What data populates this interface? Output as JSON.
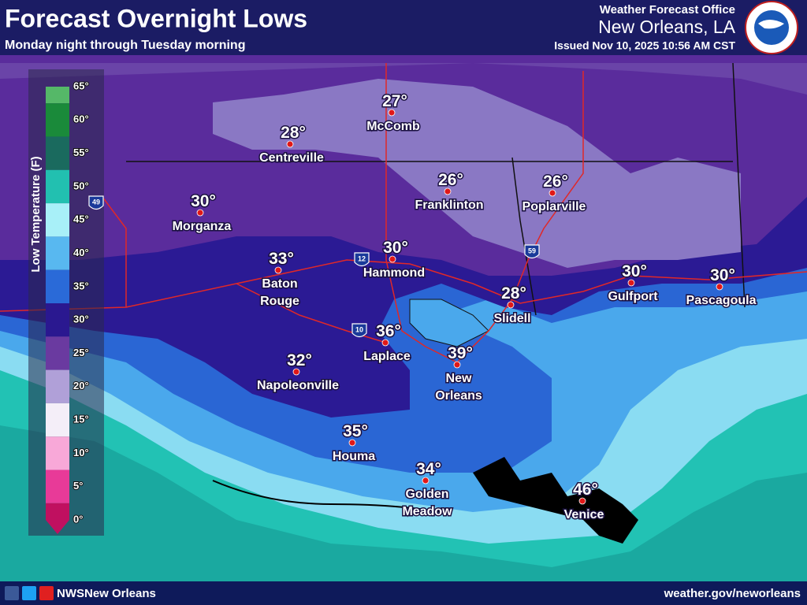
{
  "header": {
    "title": "Forecast Overnight Lows",
    "subtitle": "Monday night through Tuesday morning",
    "office": "Weather Forecast Office",
    "location": "New Orleans, LA",
    "issued": "Issued Nov 10, 2025 10:56 AM CST"
  },
  "legend": {
    "title": "Low Temperature (F)",
    "stops": [
      {
        "label": "65°",
        "color": "#55b868"
      },
      {
        "label": "60°",
        "color": "#1a8a3a"
      },
      {
        "label": "55°",
        "color": "#1a6a5e"
      },
      {
        "label": "50°",
        "color": "#22c0b0"
      },
      {
        "label": "45°",
        "color": "#a8f0f8"
      },
      {
        "label": "40°",
        "color": "#58b8f0"
      },
      {
        "label": "35°",
        "color": "#2a6ad8"
      },
      {
        "label": "30°",
        "color": "#2a1890"
      },
      {
        "label": "25°",
        "color": "#6a3aa0"
      },
      {
        "label": "20°",
        "color": "#b0a0d8"
      },
      {
        "label": "15°",
        "color": "#f4eef8"
      },
      {
        "label": "10°",
        "color": "#f8a8d8"
      },
      {
        "label": "5°",
        "color": "#e83a98"
      },
      {
        "label": "0°",
        "color": "#c01060"
      }
    ]
  },
  "cities": [
    {
      "temp": "30°",
      "name": [
        "Morganza"
      ]
    },
    {
      "temp": "28°",
      "name": [
        "Centreville"
      ]
    },
    {
      "temp": "27°",
      "name": [
        "McComb"
      ]
    },
    {
      "temp": "26°",
      "name": [
        "Franklinton"
      ]
    },
    {
      "temp": "26°",
      "name": [
        "Poplarville"
      ]
    },
    {
      "temp": "33°",
      "name": [
        "Baton",
        "Rouge"
      ]
    },
    {
      "temp": "30°",
      "name": [
        "Hammond"
      ]
    },
    {
      "temp": "28°",
      "name": [
        "Slidell"
      ]
    },
    {
      "temp": "30°",
      "name": [
        "Gulfport"
      ]
    },
    {
      "temp": "30°",
      "name": [
        "Pascagoula"
      ]
    },
    {
      "temp": "36°",
      "name": [
        "Laplace"
      ]
    },
    {
      "temp": "39°",
      "name": [
        "New",
        "Orleans"
      ]
    },
    {
      "temp": "32°",
      "name": [
        "Napoleonville"
      ]
    },
    {
      "temp": "35°",
      "name": [
        "Houma"
      ]
    },
    {
      "temp": "34°",
      "name": [
        "Golden",
        "Meadow"
      ]
    },
    {
      "temp": "46°",
      "name": [
        "Venice"
      ]
    }
  ],
  "highways": [
    "49",
    "12",
    "10",
    "59"
  ],
  "footer": {
    "social": "NWSNew Orleans",
    "url": "weather.gov/neworleans"
  }
}
